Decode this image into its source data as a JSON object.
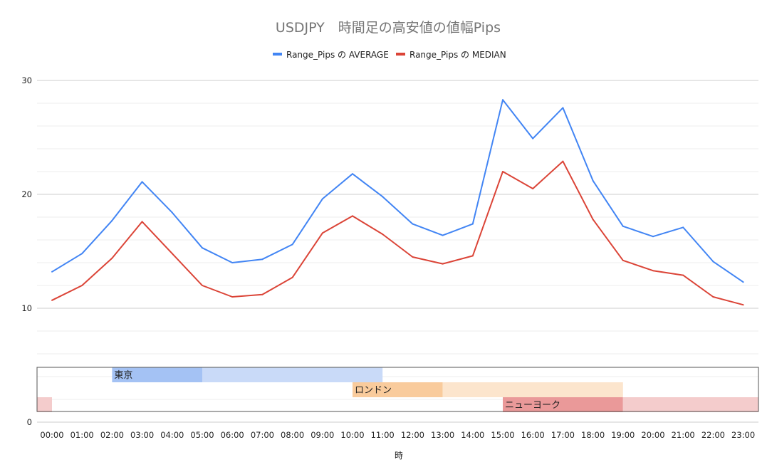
{
  "chart_data": {
    "type": "line",
    "title": "USDJPY　時間足の高安値の値幅Pips",
    "xlabel": "時",
    "ylabel": "",
    "x": [
      "00:00",
      "01:00",
      "02:00",
      "03:00",
      "04:00",
      "05:00",
      "06:00",
      "07:00",
      "08:00",
      "09:00",
      "10:00",
      "11:00",
      "12:00",
      "13:00",
      "14:00",
      "15:00",
      "16:00",
      "17:00",
      "18:00",
      "19:00",
      "20:00",
      "21:00",
      "22:00",
      "23:00"
    ],
    "ylim": [
      0,
      30
    ],
    "yticks": [
      "0",
      "10",
      "20",
      "30"
    ],
    "grid": true,
    "legend_position": "top",
    "series": [
      {
        "name": "Range_Pips の AVERAGE",
        "color": "#4285f4",
        "values": [
          13.2,
          14.8,
          17.7,
          21.1,
          18.4,
          15.3,
          14.0,
          14.3,
          15.6,
          19.6,
          21.8,
          19.8,
          17.4,
          16.4,
          17.4,
          28.3,
          24.9,
          27.6,
          21.2,
          17.2,
          16.3,
          17.1,
          14.1,
          12.3
        ]
      },
      {
        "name": "Range_Pips の MEDIAN",
        "color": "#db4437",
        "values": [
          10.7,
          12.0,
          14.4,
          17.6,
          14.8,
          12.0,
          11.0,
          11.2,
          12.7,
          16.6,
          18.1,
          16.5,
          14.5,
          13.9,
          14.6,
          22.0,
          20.5,
          22.9,
          17.8,
          14.2,
          13.3,
          12.9,
          11.0,
          10.3
        ]
      }
    ],
    "sessions": [
      {
        "label": "東京",
        "color": "#a4c2f4",
        "light_color": "#c9daf8",
        "core_start": "02:00",
        "core_end": "05:00",
        "extend_end": "11:00"
      },
      {
        "label": "ロンドン",
        "color": "#f9cb9c",
        "light_color": "#fce5cd",
        "core_start": "10:00",
        "core_end": "13:00",
        "extend_end": "19:00"
      },
      {
        "label": "ニューヨーク",
        "color": "#ea9999",
        "light_color": "#f4cccc",
        "core_start": "15:00",
        "core_end": "19:00",
        "extend_end": "24:00",
        "wrap_band": "00:00"
      }
    ]
  }
}
